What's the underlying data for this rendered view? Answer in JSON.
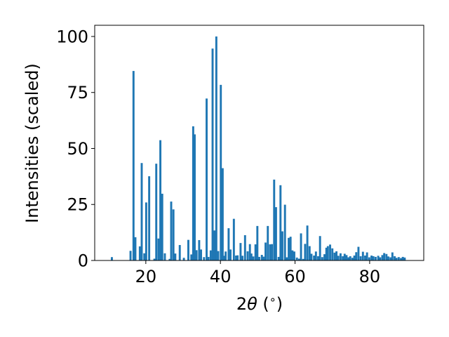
{
  "chart_data": {
    "type": "bar",
    "xlabel_parts": [
      "2",
      "θ",
      " (",
      "∘",
      ")"
    ],
    "ylabel": "Intensities (scaled)",
    "xlim": [
      6.3,
      94.5
    ],
    "ylim": [
      0,
      105
    ],
    "grid": false,
    "legend": "none",
    "color": "#1f77b4",
    "bar_width": 0.55,
    "x_ticks": [
      20,
      40,
      60,
      80
    ],
    "y_ticks": [
      0,
      25,
      50,
      75,
      100
    ],
    "x": [
      10.9,
      15.9,
      16.7,
      17.2,
      18.4,
      18.9,
      19.6,
      20.1,
      20.9,
      22.3,
      22.8,
      23.4,
      23.9,
      24.4,
      25.1,
      26.4,
      26.8,
      27.4,
      27.9,
      29.1,
      30.2,
      31.4,
      32.2,
      32.7,
      33.1,
      33.6,
      34.3,
      34.8,
      35.6,
      36.3,
      36.8,
      37.4,
      37.9,
      38.4,
      38.9,
      39.4,
      40.1,
      40.6,
      41.0,
      41.4,
      42.2,
      42.7,
      43.6,
      44.2,
      44.6,
      45.4,
      45.9,
      46.6,
      47.3,
      47.9,
      48.3,
      48.8,
      49.4,
      49.9,
      50.4,
      51.1,
      51.6,
      52.1,
      52.7,
      53.3,
      53.8,
      54.4,
      54.9,
      55.6,
      56.1,
      56.6,
      57.3,
      57.8,
      58.3,
      58.8,
      59.3,
      59.8,
      60.5,
      61.1,
      61.6,
      62.2,
      62.7,
      63.3,
      63.9,
      64.4,
      65.1,
      65.6,
      66.2,
      66.7,
      67.3,
      67.9,
      68.4,
      68.8,
      69.4,
      70.0,
      70.6,
      71.1,
      71.6,
      72.2,
      72.8,
      73.3,
      73.8,
      74.3,
      74.8,
      75.4,
      75.9,
      76.4,
      77.0,
      77.6,
      78.2,
      78.8,
      79.3,
      79.9,
      80.5,
      81.0,
      81.6,
      82.3,
      82.8,
      83.4,
      83.9,
      84.5,
      85.0,
      85.6,
      86.1,
      86.7,
      87.2,
      87.8,
      88.4,
      88.9,
      89.4
    ],
    "values": [
      1.5,
      4.3,
      84.6,
      10.4,
      6.3,
      43.5,
      3.2,
      25.9,
      37.6,
      0.8,
      43.2,
      9.8,
      53.7,
      29.8,
      3.2,
      0.7,
      26.3,
      22.8,
      3.1,
      6.9,
      1.2,
      9.2,
      2.7,
      59.9,
      56.3,
      4.6,
      9.1,
      4.9,
      1.5,
      72.3,
      1.6,
      4.5,
      94.6,
      13.4,
      100.0,
      4.2,
      78.4,
      41.2,
      2.1,
      4.0,
      14.4,
      4.9,
      18.6,
      2.2,
      2.3,
      7.8,
      2.1,
      11.3,
      4.1,
      7.3,
      3.1,
      1.8,
      7.2,
      15.4,
      1.6,
      2.5,
      1.7,
      8.0,
      15.4,
      7.2,
      7.3,
      36.1,
      23.8,
      1.6,
      33.6,
      13.0,
      24.9,
      1.4,
      10.1,
      10.6,
      4.5,
      4.0,
      1.3,
      0.8,
      12.1,
      0.7,
      7.4,
      15.6,
      6.4,
      3.0,
      2.2,
      4.0,
      1.9,
      10.9,
      1.5,
      2.8,
      5.7,
      6.4,
      7.1,
      5.4,
      3.5,
      4.1,
      2.1,
      3.2,
      1.9,
      3.0,
      2.4,
      1.4,
      1.9,
      1.2,
      2.2,
      3.7,
      6.1,
      1.9,
      3.9,
      2.2,
      3.6,
      1.4,
      2.2,
      1.9,
      1.6,
      2.1,
      1.4,
      2.4,
      3.3,
      2.9,
      1.8,
      1.4,
      3.6,
      1.9,
      1.2,
      1.5,
      1.1,
      1.6,
      1.3
    ]
  }
}
